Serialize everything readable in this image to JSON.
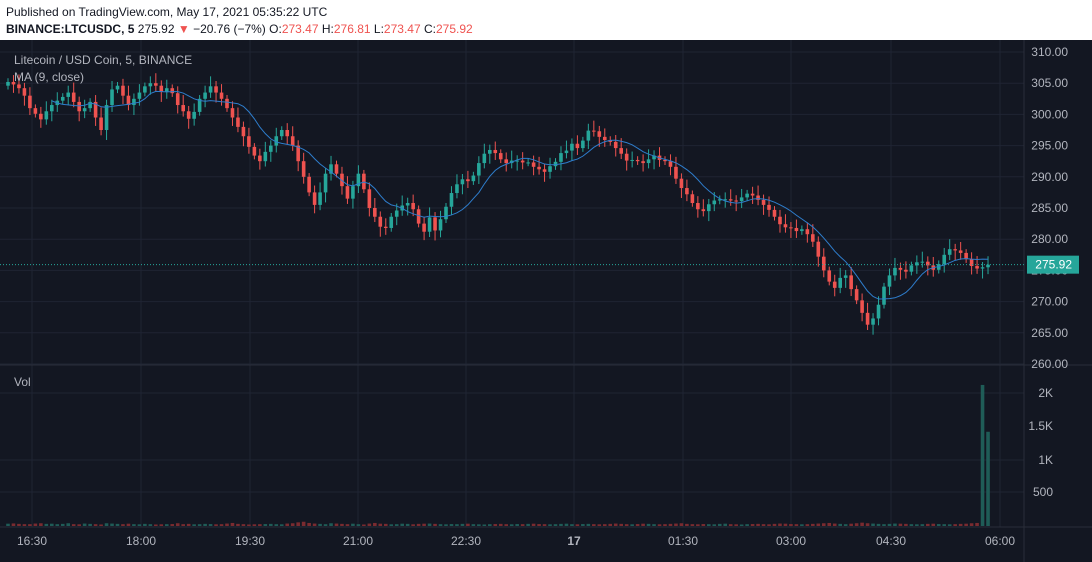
{
  "header": {
    "published": "Published on TradingView.com, May 17, 2021 05:35:22 UTC",
    "symbol": "BINANCE:LTCUSDC, 5",
    "last": "275.92",
    "arrow": "▼",
    "change": "−20.76 (−7%)",
    "o_label": "O:",
    "o_value": "273.47",
    "h_label": "H:",
    "h_value": "276.81",
    "l_label": "L:",
    "l_value": "273.47",
    "c_label": "C:",
    "c_value": "275.92"
  },
  "legend": {
    "title": "Litecoin / USD Coin, 5, BINANCE",
    "ma": "MA (9, close)",
    "vol": "Vol"
  },
  "price_label": "275.92",
  "colors": {
    "bg": "#131722",
    "grid": "#1f2433",
    "up": "#26a69a",
    "down": "#ef5350",
    "ma": "#2e7dcc",
    "text": "#b2b5be",
    "vol_up": "#1f5c57",
    "vol_down": "#7a2b30"
  },
  "chart_data": {
    "type": "candlestick",
    "x_ticks": [
      "16:30",
      "18:00",
      "19:30",
      "21:00",
      "22:30",
      "17",
      "01:30",
      "03:00",
      "04:30",
      "06:00"
    ],
    "y_ticks": [
      "310.00",
      "305.00",
      "300.00",
      "295.00",
      "290.00",
      "285.00",
      "280.00",
      "275.00",
      "270.00",
      "265.00",
      "260.00"
    ],
    "ylim": [
      260,
      310
    ],
    "vol_ticks": [
      "2K",
      "1.5K",
      "1K",
      "500"
    ],
    "vol_ylim": [
      0,
      2300
    ],
    "last_price": 275.92,
    "bar_interval_minutes": 5,
    "first_bar_time": "16:00",
    "closes": [
      305.2,
      304.8,
      304.2,
      303,
      301,
      300.1,
      299.2,
      300.5,
      301.5,
      302.2,
      302.8,
      303.5,
      302,
      300.5,
      301,
      302,
      299.5,
      297.5,
      301.5,
      304,
      304.6,
      303,
      301.5,
      302.5,
      303.5,
      304.5,
      305,
      304.6,
      303.6,
      304.2,
      303.4,
      301.5,
      300.5,
      299.3,
      300.4,
      302.5,
      303.5,
      304.5,
      303.5,
      302.5,
      301,
      299.5,
      298,
      296.5,
      294.8,
      293.4,
      292.5,
      294,
      295,
      296.5,
      297.5,
      296.5,
      295,
      292.5,
      290,
      287.5,
      285.5,
      287.5,
      290.5,
      292,
      290.5,
      288.5,
      286.5,
      288.5,
      290.5,
      288,
      285,
      283.6,
      282,
      281.8,
      283.6,
      284.6,
      285.4,
      285.8,
      284.8,
      282.5,
      281.2,
      283.5,
      281.4,
      283.2,
      285.2,
      287.4,
      288.8,
      289.6,
      289.3,
      290.2,
      292.2,
      293.7,
      294.3,
      293.8,
      292.8,
      292.2,
      292.6,
      292.6,
      292.3,
      292.3,
      291.6,
      291.2,
      290.8,
      291.7,
      292.4,
      293.8,
      294.2,
      295.3,
      294.6,
      295.8,
      297.4,
      297.3,
      296.4,
      295.9,
      295.6,
      294.6,
      293.7,
      292.6,
      292.7,
      292.5,
      292.2,
      292.8,
      293.4,
      292.7,
      292.5,
      291.6,
      289.7,
      288.2,
      287.2,
      285.8,
      284.8,
      284.5,
      285.6,
      286.2,
      286.4,
      286.4,
      286.2,
      286.1,
      286.7,
      287.3,
      287,
      286.3,
      285.5,
      284.7,
      283.6,
      282.4,
      281.9,
      281.8,
      281.3,
      281.6,
      280.8,
      279.6,
      277.2,
      275,
      273.2,
      272.2,
      273.8,
      274.2,
      272,
      270.2,
      268.2,
      266.3,
      267.3,
      269.5,
      272.4,
      274.2,
      275.4,
      275.1,
      274.8,
      275.8,
      276.3,
      276.4,
      275.8,
      275.1,
      276,
      277.5,
      278.4,
      278.2,
      277.8,
      276.8,
      275.7,
      275.3,
      275.5,
      275.92
    ],
    "volume": [
      38,
      42,
      35,
      30,
      30,
      40,
      45,
      35,
      38,
      30,
      35,
      45,
      30,
      28,
      40,
      35,
      30,
      25,
      45,
      40,
      35,
      30,
      38,
      30,
      28,
      35,
      30,
      25,
      28,
      30,
      32,
      45,
      30,
      35,
      28,
      30,
      35,
      32,
      28,
      30,
      40,
      50,
      35,
      30,
      25,
      28,
      30,
      32,
      35,
      30,
      28,
      40,
      45,
      60,
      70,
      50,
      40,
      35,
      30,
      45,
      40,
      35,
      30,
      38,
      30,
      25,
      40,
      50,
      38,
      35,
      28,
      30,
      38,
      35,
      28,
      35,
      38,
      40,
      35,
      30,
      28,
      32,
      30,
      35,
      38,
      30,
      28,
      25,
      30,
      32,
      35,
      30,
      28,
      32,
      30,
      35,
      38,
      32,
      30,
      28,
      30,
      35,
      38,
      30,
      28,
      32,
      35,
      30,
      28,
      30,
      35,
      40,
      35,
      30,
      28,
      32,
      38,
      35,
      30,
      28,
      30,
      35,
      40,
      45,
      35,
      30,
      28,
      32,
      30,
      28,
      35,
      38,
      30,
      28,
      25,
      30,
      32,
      35,
      30,
      28,
      35,
      40,
      38,
      32,
      30,
      28,
      30,
      35,
      40,
      45,
      50,
      40,
      35,
      30,
      38,
      45,
      55,
      45,
      40,
      35,
      30,
      35,
      40,
      38,
      35,
      30,
      28,
      30,
      35,
      38,
      32,
      30,
      28,
      30,
      35,
      38,
      45,
      50,
      2320,
      1550
    ]
  }
}
